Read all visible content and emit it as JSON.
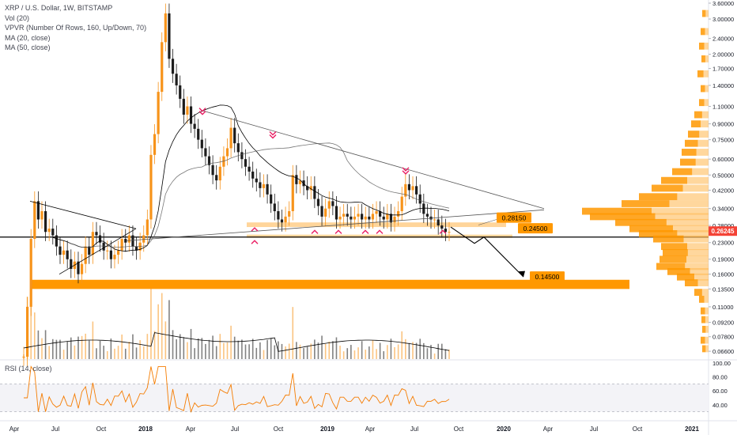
{
  "legend": {
    "symbol": "XRP / U.S. Dollar, 1W, BITSTAMP",
    "vol": "Vol (20)",
    "vpvr": "VPVR (Number Of Rows, 160, Up/Down, 70)",
    "ma20": "MA (20, close)",
    "ma50": "MA (50, close)",
    "rsi": "RSI (14, close)"
  },
  "colors": {
    "candle": "#f7931a",
    "candle_dark": "#1c1c1c",
    "zone": "#ffb347",
    "zone_strong": "#ff9800",
    "marker": "#e91e63",
    "vpvr_up": "#ffb74d",
    "vpvr_dn": "#ff9800",
    "rsi_line": "#f57c00",
    "price_tag": "#f44336"
  },
  "chart_data": {
    "type": "candlestick",
    "symbol": "XRP / U.S. Dollar",
    "timeframe": "1W",
    "exchange": "BITSTAMP",
    "price_scale": "log",
    "ylim": [
      0.062,
      3.6
    ],
    "x_ticks": [
      "Apr",
      "Jul",
      "Oct",
      "2018",
      "Apr",
      "Jul",
      "Oct",
      "2019",
      "Apr",
      "Jul",
      "Oct",
      "2020",
      "Apr",
      "Jul",
      "Oct",
      "2021"
    ],
    "y_ticks": [
      "3.60000",
      "3.00000",
      "2.40000",
      "2.00000",
      "1.70000",
      "1.40000",
      "1.10000",
      "0.90000",
      "0.75000",
      "0.60000",
      "0.50000",
      "0.42000",
      "0.34000",
      "0.28000",
      "0.23000",
      "0.19000",
      "0.16000",
      "0.13500",
      "0.11000",
      "0.09200",
      "0.07800",
      "0.06600"
    ],
    "y_tick_values": [
      3.6,
      3.0,
      2.4,
      2.0,
      1.7,
      1.4,
      1.1,
      0.9,
      0.75,
      0.6,
      0.5,
      0.42,
      0.34,
      0.28,
      0.23,
      0.19,
      0.16,
      0.135,
      0.11,
      0.092,
      0.078,
      0.066
    ],
    "current_price": "0.26245",
    "current_price_value": 0.26245,
    "levels": [
      {
        "label": "0.28150",
        "value": 0.2815
      },
      {
        "label": "0.24500",
        "value": 0.245
      },
      {
        "label": "0.14500",
        "value": 0.145
      }
    ],
    "rsi_ticks": [
      "100.00",
      "80.00",
      "60.00",
      "40.00"
    ],
    "rsi_tick_values": [
      100,
      80,
      60,
      40
    ],
    "rsi_levels": [
      70,
      30
    ]
  }
}
